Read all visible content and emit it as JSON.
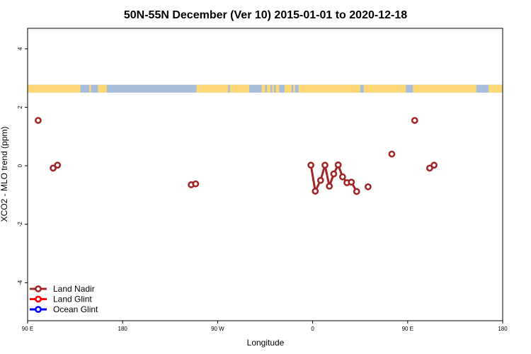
{
  "chart_data": {
    "type": "line",
    "title": "50N-55N December (Ver 10)   2015-01-01 to 2020-12-18",
    "xlabel": "Longitude",
    "ylabel": "XCO2 - MLO trend (ppm)",
    "x_axis": {
      "range": [
        -90,
        180
      ],
      "ticks": [
        {
          "value": -90,
          "label": "90 E"
        },
        {
          "value": -36,
          "label": "180"
        },
        {
          "value": 18,
          "label": "90 W"
        },
        {
          "value": 72,
          "label": "0"
        },
        {
          "value": 126,
          "label": "90 E"
        },
        {
          "value": 180,
          "label": "180"
        }
      ]
    },
    "y_axis": {
      "range": [
        -5.3,
        4.7
      ],
      "ticks": [
        {
          "value": -4,
          "label": "-4"
        },
        {
          "value": -2,
          "label": "-2"
        },
        {
          "value": 0,
          "label": "0"
        },
        {
          "value": 2,
          "label": "2"
        },
        {
          "value": 4,
          "label": "4"
        }
      ]
    },
    "land_band": {
      "y_range": [
        2.5,
        2.77
      ],
      "ocean_color": "#a6bddb",
      "land_color": "#fdd876",
      "land_segments": [
        [
          -90,
          -60
        ],
        [
          -55,
          -54
        ],
        [
          -50,
          -45
        ],
        [
          6,
          24
        ],
        [
          25,
          36
        ],
        [
          43,
          45
        ],
        [
          46,
          48
        ],
        [
          49,
          50
        ],
        [
          51,
          53
        ],
        [
          56,
          60
        ],
        [
          61,
          62
        ],
        [
          64,
          99
        ],
        [
          101,
          125
        ],
        [
          129,
          165
        ],
        [
          172,
          180
        ]
      ]
    },
    "series": [
      {
        "name": "Land Nadir",
        "color": "#a02828",
        "segments": [
          [
            {
              "x": -84.0,
              "y": 1.55
            }
          ],
          [
            {
              "x": -75.5,
              "y": -0.08
            },
            {
              "x": -73.0,
              "y": 0.02
            }
          ],
          [
            {
              "x": 3.0,
              "y": -0.65
            },
            {
              "x": 5.5,
              "y": -0.62
            }
          ],
          [
            {
              "x": 71.0,
              "y": 0.02
            },
            {
              "x": 73.5,
              "y": -0.87
            },
            {
              "x": 76.5,
              "y": -0.5
            },
            {
              "x": 79.0,
              "y": 0.02
            },
            {
              "x": 81.5,
              "y": -0.7
            },
            {
              "x": 84.0,
              "y": -0.28
            },
            {
              "x": 86.5,
              "y": 0.03
            },
            {
              "x": 89.0,
              "y": -0.38
            },
            {
              "x": 91.5,
              "y": -0.58
            },
            {
              "x": 94.0,
              "y": -0.56
            },
            {
              "x": 97.0,
              "y": -0.88
            }
          ],
          [
            {
              "x": 103.5,
              "y": -0.72
            }
          ],
          [
            {
              "x": 117.0,
              "y": 0.4
            }
          ],
          [
            {
              "x": 130.0,
              "y": 1.55
            }
          ],
          [
            {
              "x": 138.5,
              "y": -0.08
            },
            {
              "x": 141.0,
              "y": 0.02
            }
          ]
        ]
      },
      {
        "name": "Land Glint",
        "color": "#ff0000",
        "segments": []
      },
      {
        "name": "Ocean Glint",
        "color": "#0000ff",
        "segments": []
      }
    ],
    "legend_position": "bottom-left"
  }
}
